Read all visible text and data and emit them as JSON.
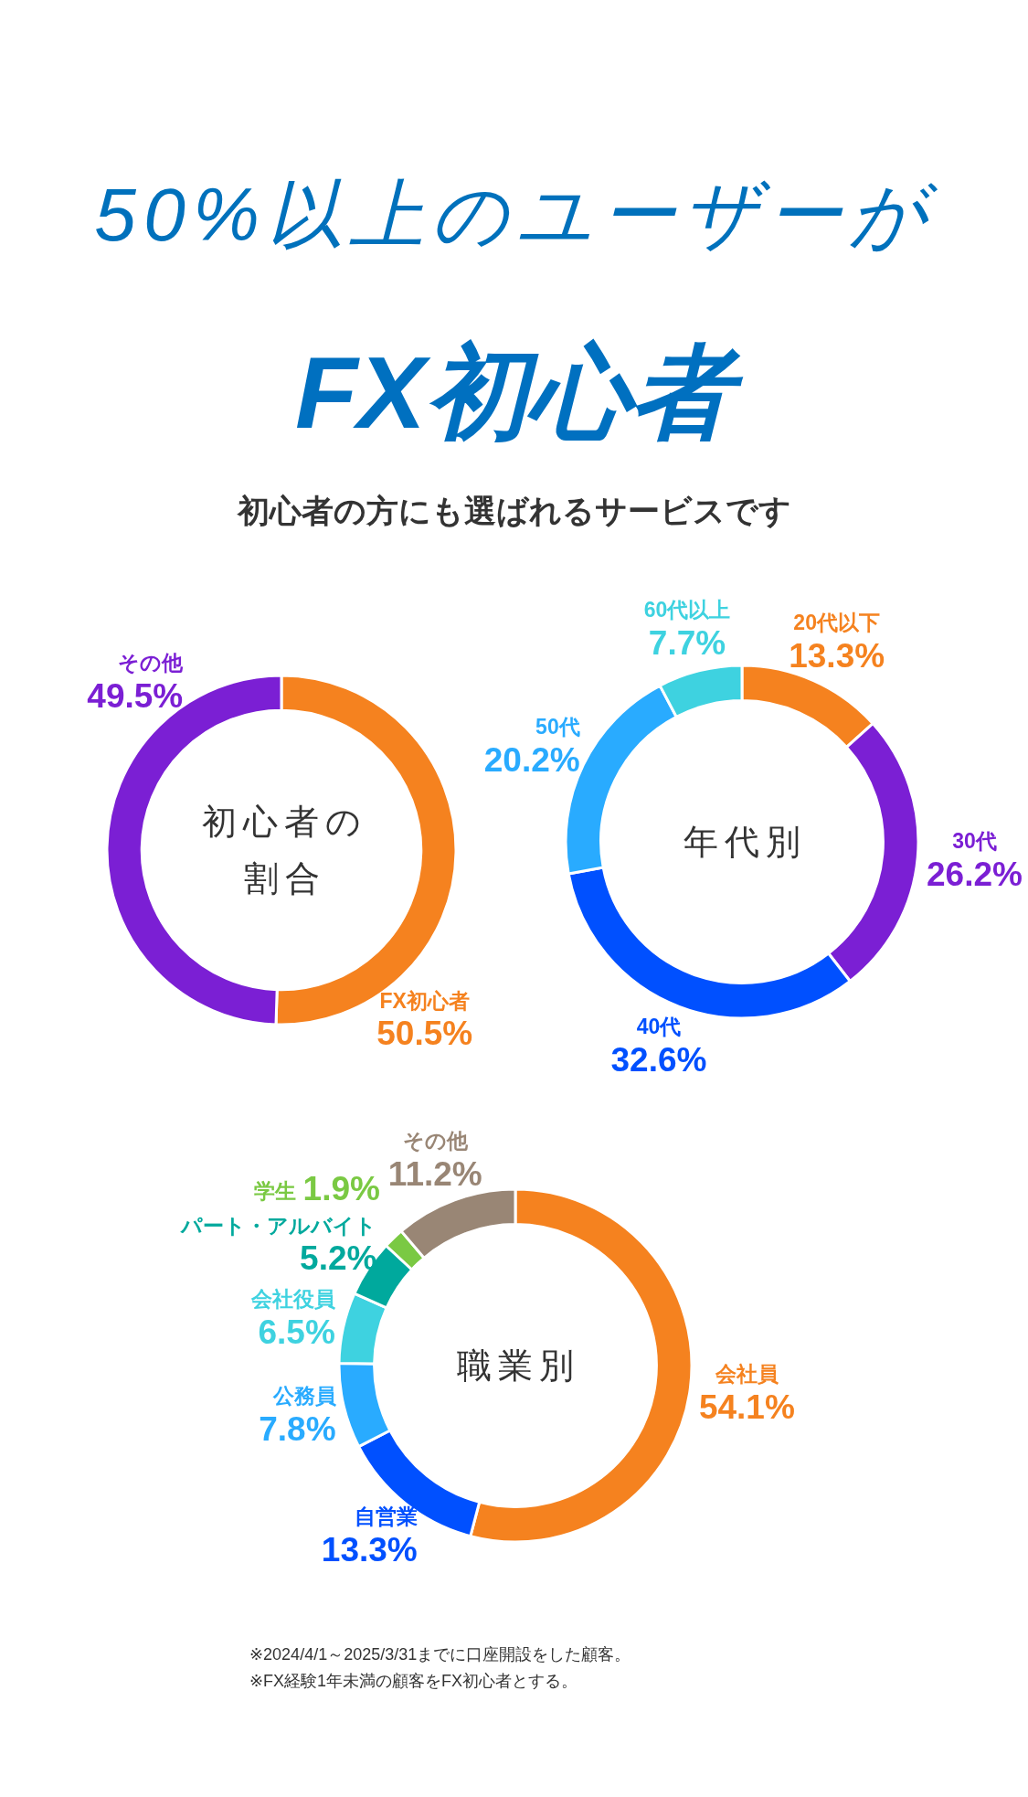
{
  "chart_data": [
    {
      "type": "other",
      "title": "50%以上のユーザーが",
      "subtitle": "FX初心者",
      "annotations": [
        "初心者の方にも選ばれるサービスです"
      ]
    },
    {
      "type": "donut",
      "title": "初心者の割合",
      "categories": [
        "FX初心者",
        "その他"
      ],
      "values": [
        50.5,
        49.5
      ],
      "colors": [
        "#f5821f",
        "#7b1fd4"
      ],
      "value_labels": [
        "50.5%",
        "49.5%"
      ]
    },
    {
      "type": "donut",
      "title": "年代別",
      "categories": [
        "20代以下",
        "30代",
        "40代",
        "50代",
        "60代以上"
      ],
      "values": [
        13.3,
        26.2,
        32.6,
        20.2,
        7.7
      ],
      "colors": [
        "#f5821f",
        "#7b1fd4",
        "#0050ff",
        "#29abff",
        "#3ed2e0"
      ],
      "value_labels": [
        "13.3%",
        "26.2%",
        "32.6%",
        "20.2%",
        "7.7%"
      ]
    },
    {
      "type": "donut",
      "title": "職業別",
      "categories": [
        "会社員",
        "自営業",
        "公務員",
        "会社役員",
        "パート・アルバイト",
        "学生",
        "その他"
      ],
      "values": [
        54.1,
        13.3,
        7.8,
        6.5,
        5.2,
        1.9,
        11.2
      ],
      "colors": [
        "#f5821f",
        "#0050ff",
        "#29abff",
        "#3ed2e0",
        "#00a99d",
        "#7ac943",
        "#998675"
      ],
      "value_labels": [
        "54.1%",
        "13.3%",
        "7.8%",
        "6.5%",
        "5.2%",
        "1.9%",
        "11.2%"
      ]
    },
    {
      "type": "other",
      "annotations": [
        "※2024/4/1～2025/3/31までに口座開設をした顧客。",
        "※FX経験1年未満の顧客をFX初心者とする。"
      ]
    }
  ]
}
